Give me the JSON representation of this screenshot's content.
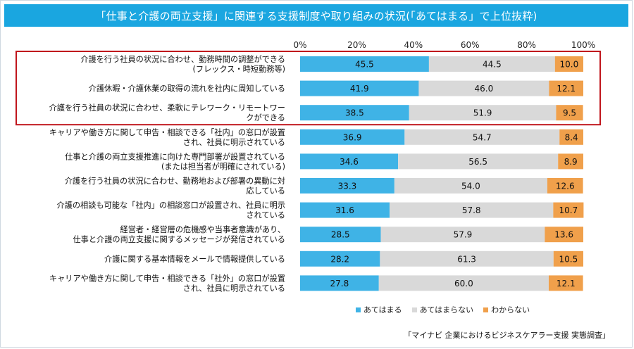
{
  "chart_data": {
    "type": "stacked-bar-horizontal",
    "title": "「仕事と介護の両立支援」に関連する支援制度や取り組みの状況(「あてはまる」で上位抜粋)",
    "x_ticks": [
      "0%",
      "20%",
      "40%",
      "60%",
      "80%",
      "100%"
    ],
    "xlim": [
      0,
      100
    ],
    "series": [
      {
        "name": "あてはまる",
        "color": "#3fb3e6",
        "values": [
          45.5,
          41.9,
          38.5,
          36.9,
          34.6,
          33.3,
          31.6,
          28.5,
          28.2,
          27.8
        ]
      },
      {
        "name": "あてはまらない",
        "color": "#d9d9d9",
        "values": [
          44.5,
          46.0,
          51.9,
          54.7,
          56.5,
          54.0,
          57.8,
          57.9,
          61.3,
          60.0
        ]
      },
      {
        "name": "わからない",
        "color": "#f0a04b",
        "values": [
          10.0,
          12.1,
          9.5,
          8.4,
          8.9,
          12.6,
          10.7,
          13.6,
          10.5,
          12.1
        ]
      }
    ],
    "categories": [
      [
        "介護を行う社員の状況に合わせ、勤務時間の調整ができる",
        "(フレックス・時短勤務等)"
      ],
      [
        "介護休暇・介護休業の取得の流れを社内に周知している"
      ],
      [
        "介護を行う社員の状況に合わせ、柔軟にテレワーク・リモートワー",
        "クができる"
      ],
      [
        "キャリアや働き方に関して申告・相談できる「社内」の窓口が設置",
        "され、社員に明示されている"
      ],
      [
        "仕事と介護の両立支援推進に向けた専門部署が設置されている",
        "(または担当者が明確にされている)"
      ],
      [
        "介護を行う社員の状況に合わせ、勤務地および部署の異動に対",
        "応している"
      ],
      [
        "介護の相談も可能な「社内」の相談窓口が設置され、社員に明示",
        "されている"
      ],
      [
        "経営者・経営層の危機感や当事者意識があり、",
        "仕事と介護の両立支援に関するメッセージが発信されている"
      ],
      [
        "介護に関する基本情報をメールで情報提供している"
      ],
      [
        "キャリアや働き方に関して申告・相談できる「社外」の窓口が設置",
        "され、社員に明示されている"
      ]
    ],
    "highlight_rows": [
      0,
      1,
      2
    ],
    "highlight_color": "#c0151c",
    "label_colors": {
      "あてはまる": "#111111",
      "あてはまらない": "#111111",
      "わからない": "#111111"
    }
  },
  "source": "「マイナビ 企業におけるビジネスケアラー支援 実態調査」"
}
